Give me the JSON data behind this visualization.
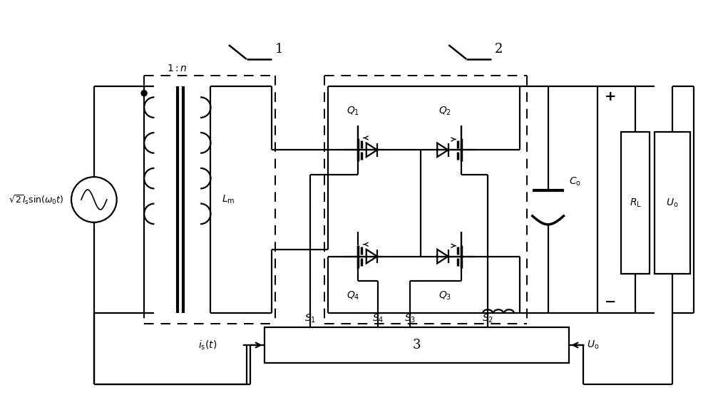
{
  "bg_color": "#ffffff",
  "line_color": "#000000",
  "lw": 1.6,
  "fig_width": 10.0,
  "fig_height": 5.54,
  "dpi": 100
}
